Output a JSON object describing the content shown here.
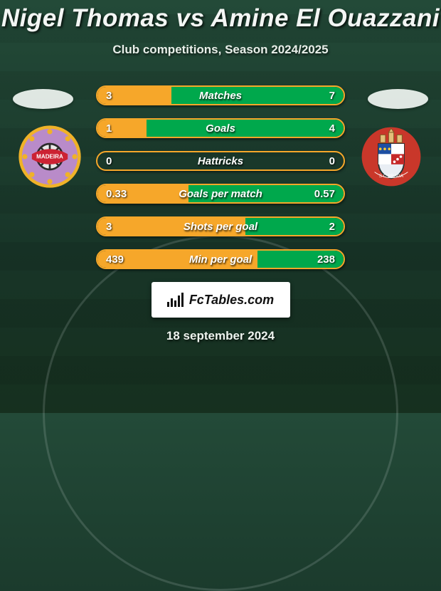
{
  "header": {
    "title": "Nigel Thomas vs Amine El Ouazzani",
    "subtitle": "Club competitions, Season 2024/2025"
  },
  "accent": {
    "left": "#f6a72a",
    "right": "#00a84c",
    "border": "#f6a72a",
    "crest_left_bg": "#b98bc9",
    "crest_left_ring": "#f0b228",
    "crest_left_inner": "#2a2a2a",
    "crest_right_bg": "#c9372a",
    "crest_right_shield": "#e9eef4"
  },
  "stats": [
    {
      "label": "Matches",
      "left_value": "3",
      "right_value": "7",
      "left_pct": 30,
      "right_pct": 70
    },
    {
      "label": "Goals",
      "left_value": "1",
      "right_value": "4",
      "left_pct": 20,
      "right_pct": 80
    },
    {
      "label": "Hattricks",
      "left_value": "0",
      "right_value": "0",
      "left_pct": 0,
      "right_pct": 0
    },
    {
      "label": "Goals per match",
      "left_value": "0.33",
      "right_value": "0.57",
      "left_pct": 37,
      "right_pct": 63
    },
    {
      "label": "Shots per goal",
      "left_value": "3",
      "right_value": "2",
      "left_pct": 60,
      "right_pct": 40
    },
    {
      "label": "Min per goal",
      "left_value": "439",
      "right_value": "238",
      "left_pct": 65,
      "right_pct": 35
    }
  ],
  "footer": {
    "logo_text": "FcTables.com",
    "date": "18 september 2024"
  }
}
